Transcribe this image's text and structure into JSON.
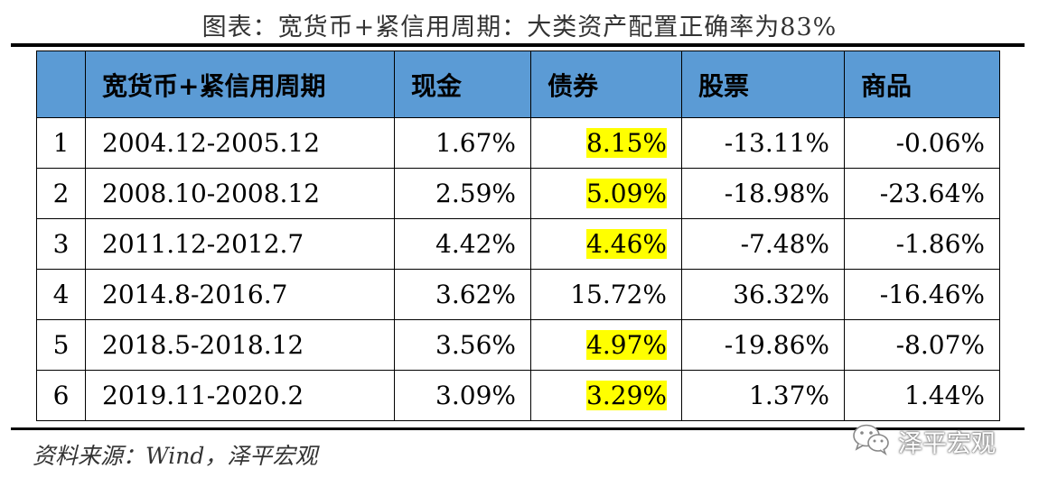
{
  "title": "图表：宽货币+紧信用周期：大类资产配置正确率为83%",
  "table": {
    "headers": [
      "",
      "宽货币+紧信用周期",
      "现金",
      "债券",
      "股票",
      "商品"
    ],
    "rows": [
      {
        "index": "1",
        "period": "2004.12-2005.12",
        "cash": "1.67%",
        "bond": "8.15%",
        "stock": "-13.11%",
        "commodity": "-0.06%",
        "bond_highlight": true
      },
      {
        "index": "2",
        "period": "2008.10-2008.12",
        "cash": "2.59%",
        "bond": "5.09%",
        "stock": "-18.98%",
        "commodity": "-23.64%",
        "bond_highlight": true
      },
      {
        "index": "3",
        "period": "2011.12-2012.7",
        "cash": "4.42%",
        "bond": "4.46%",
        "stock": "-7.48%",
        "commodity": "-1.86%",
        "bond_highlight": true
      },
      {
        "index": "4",
        "period": "2014.8-2016.7",
        "cash": "3.62%",
        "bond": "15.72%",
        "stock": "36.32%",
        "commodity": "-16.46%",
        "bond_highlight": false
      },
      {
        "index": "5",
        "period": "2018.5-2018.12",
        "cash": "3.56%",
        "bond": "4.97%",
        "stock": "-19.86%",
        "commodity": "-8.07%",
        "bond_highlight": true
      },
      {
        "index": "6",
        "period": "2019.11-2020.2",
        "cash": "3.09%",
        "bond": "3.29%",
        "stock": "1.37%",
        "commodity": "1.44%",
        "bond_highlight": true
      }
    ]
  },
  "source": "资料来源：Wind，泽平宏观",
  "watermark": {
    "text": "泽平宏观",
    "icon": "wechat-icon"
  },
  "colors": {
    "header_bg": "#5b9bd5",
    "highlight": "#ffff00"
  }
}
